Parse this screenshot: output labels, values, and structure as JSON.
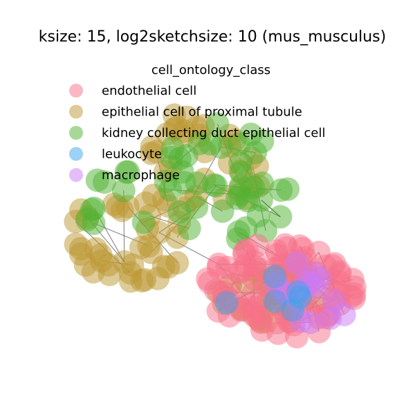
{
  "chart_data": {
    "type": "network",
    "title": "ksize: 15, log2sketchsize: 10 (mus_musculus)",
    "legend": {
      "title": "cell_ontology_class",
      "placement": "top-left",
      "entries": [
        {
          "label": "endothelial cell",
          "color": "#f77189"
        },
        {
          "label": "epithelial cell of proximal tubule",
          "color": "#bb9832"
        },
        {
          "label": "kidney collecting duct epithelial cell",
          "color": "#50b131"
        },
        {
          "label": "leukocyte",
          "color": "#3ba3ec"
        },
        {
          "label": "macrophage",
          "color": "#cc7af4"
        }
      ]
    },
    "node_opacity": 0.5,
    "edge_color": "#333333",
    "axes_visible": false,
    "clusters": [
      {
        "class": "epithelial cell of proximal tubule",
        "nodes": 95
      },
      {
        "class": "kidney collecting duct epithelial cell",
        "nodes": 50
      },
      {
        "class": "endothelial cell",
        "nodes": 90
      },
      {
        "class": "macrophage",
        "nodes": 16
      },
      {
        "class": "leukocyte",
        "nodes": 6
      }
    ]
  }
}
